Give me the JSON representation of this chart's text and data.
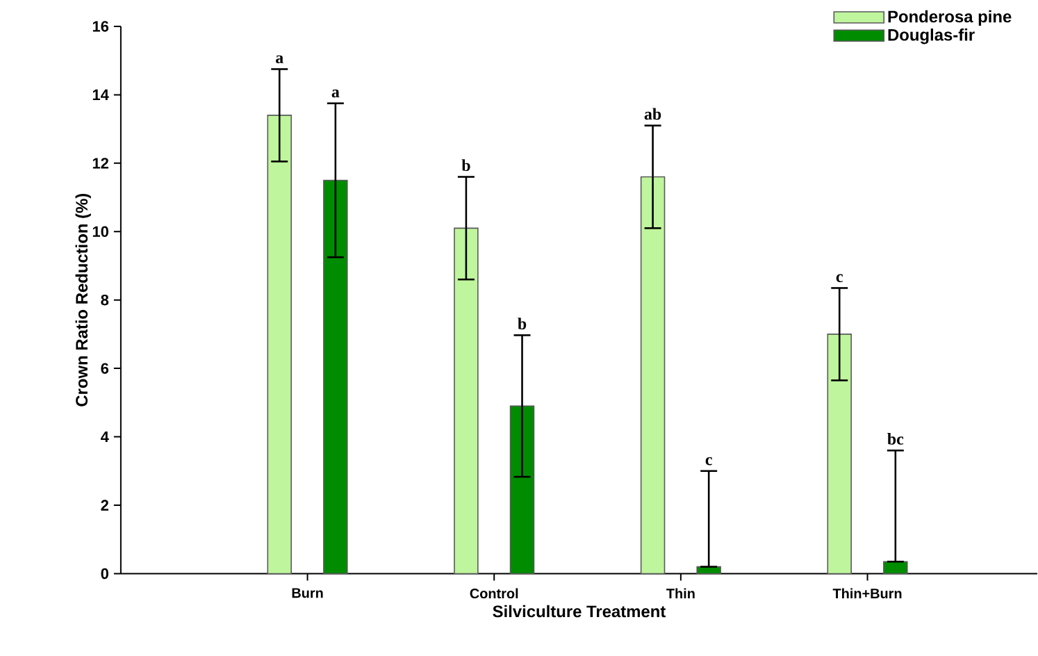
{
  "chart_data": {
    "type": "bar",
    "xlabel": "Silviculture Treatment",
    "ylabel": "Crown Ratio Reduction (%)",
    "categories": [
      "Burn",
      "Control",
      "Thin",
      "Thin+Burn"
    ],
    "series": [
      {
        "name": "Ponderosa pine",
        "color": "#bff59c",
        "values": [
          13.4,
          10.1,
          11.6,
          7.0
        ],
        "errors": [
          1.35,
          1.5,
          1.5,
          1.35
        ]
      },
      {
        "name": "Douglas-fir",
        "color": "#008c00",
        "values": [
          11.5,
          4.9,
          0.2,
          0.35
        ],
        "errors": [
          2.25,
          2.07,
          [
            0.2,
            3.0
          ],
          [
            0.35,
            3.6
          ]
        ]
      }
    ],
    "annotations": [
      "a",
      "a",
      "b",
      "b",
      "ab",
      "c",
      "c",
      "bc"
    ],
    "ylim": [
      0,
      16
    ],
    "yticks": [
      0,
      2,
      4,
      6,
      8,
      10,
      12,
      14,
      16
    ],
    "legend": "top right",
    "grid": false
  }
}
